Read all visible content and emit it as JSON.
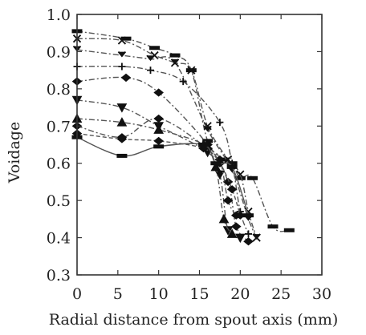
{
  "chart_data": {
    "type": "line",
    "title": "",
    "xlabel": "Radial distance from spout axis (mm)",
    "ylabel": "Voidage",
    "xlim": [
      0,
      30
    ],
    "ylim": [
      0.3,
      1.0
    ],
    "xticks": [
      "0",
      "5",
      "10",
      "15",
      "20",
      "25",
      "30"
    ],
    "yticks": [
      "0.3",
      "0.4",
      "0.5",
      "0.6",
      "0.7",
      "0.8",
      "0.9",
      "1.0"
    ],
    "grid": false,
    "legend": "none",
    "series": [
      {
        "marker": "bar",
        "style": "dashdot",
        "x": [
          0,
          6,
          9.5,
          12,
          14,
          16,
          18,
          19,
          20,
          21.5,
          24,
          26
        ],
        "y": [
          0.955,
          0.935,
          0.91,
          0.89,
          0.85,
          0.66,
          0.61,
          0.6,
          0.56,
          0.56,
          0.43,
          0.42
        ]
      },
      {
        "marker": "x",
        "style": "dashdot",
        "x": [
          0,
          5.5,
          9.5,
          12,
          14,
          16,
          18.5,
          20,
          21,
          22
        ],
        "y": [
          0.935,
          0.93,
          0.89,
          0.87,
          0.85,
          0.7,
          0.61,
          0.57,
          0.47,
          0.4
        ]
      },
      {
        "marker": "v",
        "style": "dashdot",
        "x": [
          0,
          5.5,
          9,
          12,
          16,
          19,
          21,
          22
        ],
        "y": [
          0.905,
          0.89,
          0.88,
          0.87,
          0.69,
          0.58,
          0.45,
          0.4
        ]
      },
      {
        "marker": "plus",
        "style": "dashdot",
        "x": [
          0,
          5.5,
          9,
          13,
          17.5,
          19,
          20,
          21
        ],
        "y": [
          0.86,
          0.86,
          0.85,
          0.82,
          0.71,
          0.6,
          0.47,
          0.41
        ]
      },
      {
        "marker": "diamond",
        "style": "dashdot",
        "x": [
          0,
          6,
          10,
          16,
          18.5,
          19.5,
          21
        ],
        "y": [
          0.82,
          0.83,
          0.79,
          0.65,
          0.55,
          0.43,
          0.39
        ]
      },
      {
        "marker": "tri-down",
        "style": "dashdot",
        "x": [
          0,
          5.5,
          10,
          16,
          17.5,
          18.5,
          20
        ],
        "y": [
          0.77,
          0.75,
          0.7,
          0.63,
          0.57,
          0.42,
          0.4
        ]
      },
      {
        "marker": "triangle",
        "style": "dashdot",
        "x": [
          0,
          5.5,
          10,
          15.5,
          17,
          18,
          19
        ],
        "y": [
          0.72,
          0.71,
          0.69,
          0.65,
          0.59,
          0.45,
          0.41
        ]
      },
      {
        "marker": "diamond",
        "style": "dashdot",
        "x": [
          0,
          5.5,
          10,
          16,
          17.5,
          18.5,
          19.5
        ],
        "y": [
          0.7,
          0.67,
          0.72,
          0.64,
          0.61,
          0.5,
          0.46
        ]
      },
      {
        "marker": "diamond",
        "style": "dashed",
        "x": [
          0,
          5.5,
          10,
          15.5,
          17.5,
          19,
          20
        ],
        "y": [
          0.68,
          0.665,
          0.66,
          0.64,
          0.6,
          0.53,
          0.46
        ]
      },
      {
        "marker": "bar",
        "style": "solid",
        "x": [
          0,
          5.5,
          10,
          15.5,
          17,
          19,
          21
        ],
        "y": [
          0.67,
          0.62,
          0.645,
          0.65,
          0.6,
          0.59,
          0.46
        ]
      }
    ]
  }
}
